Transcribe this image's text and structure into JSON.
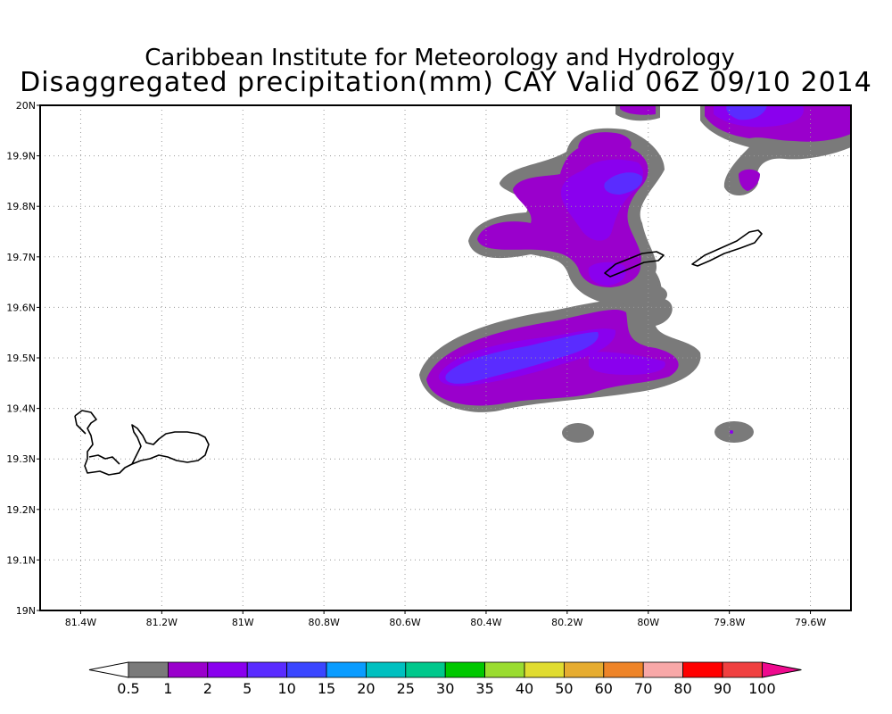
{
  "header": {
    "institute": "Caribbean Institute for Meteorology and Hydrology",
    "product": "Disaggregated precipitation(mm) CAY Valid 06Z 09/10 2014"
  },
  "map": {
    "lon_range": [
      -81.5,
      -79.5
    ],
    "lat_range": [
      19.0,
      20.0
    ],
    "grid": "dotted",
    "islands": [
      "Grand Cayman",
      "Little Cayman",
      "Cayman Brac"
    ]
  },
  "axes": {
    "x_ticks": [
      "81.4W",
      "81.2W",
      "81W",
      "80.8W",
      "80.6W",
      "80.4W",
      "80.2W",
      "80W",
      "79.8W",
      "79.6W"
    ],
    "y_ticks": [
      "20N",
      "19.9N",
      "19.8N",
      "19.7N",
      "19.6N",
      "19.5N",
      "19.4N",
      "19.3N",
      "19.2N",
      "19.1N",
      "19N"
    ]
  },
  "colorbar": {
    "levels": [
      "0.5",
      "1",
      "2",
      "5",
      "10",
      "15",
      "20",
      "25",
      "30",
      "35",
      "40",
      "50",
      "60",
      "70",
      "80",
      "90",
      "100"
    ],
    "colors": [
      "#ffffff",
      "#7a7a7a",
      "#9a00cc",
      "#8a00ee",
      "#5a2cff",
      "#3a46ff",
      "#0a9cff",
      "#00c0c0",
      "#00c88c",
      "#00c800",
      "#9adc30",
      "#e0dc30",
      "#e6ac30",
      "#ee8428",
      "#f8a8a8",
      "#ff0000",
      "#f04040",
      "#ee0a8e"
    ]
  }
}
